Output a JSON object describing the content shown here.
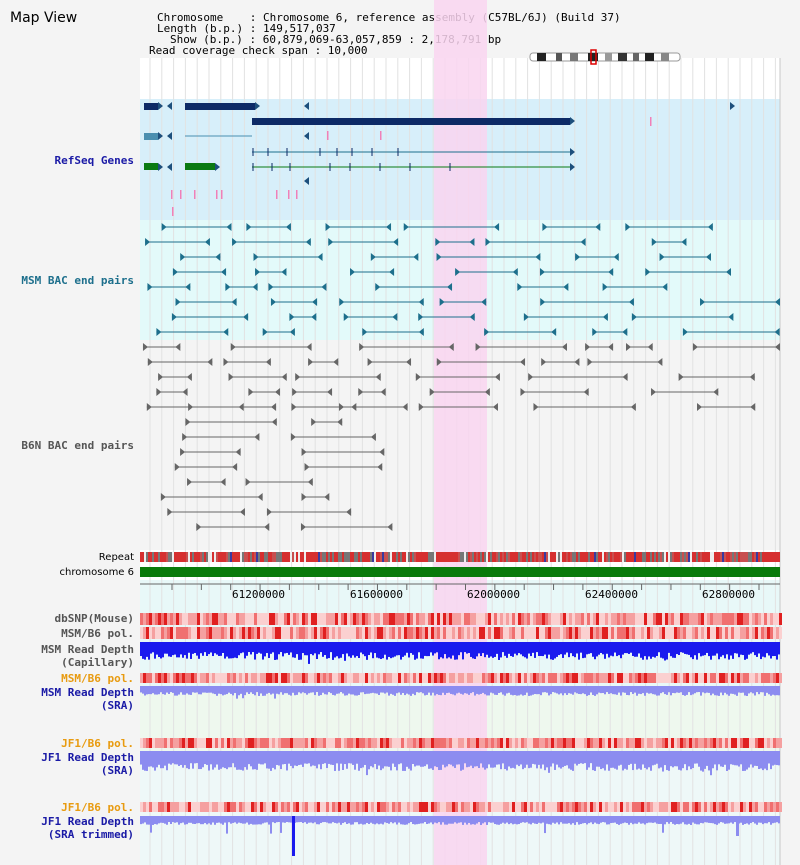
{
  "title": "Map View",
  "info": {
    "chromosome": "Chromosome    : Chromosome 6, reference assembly (C57BL/6J) (Build 37)",
    "length": "Length (b.p.) : 149,517,037",
    "show": "Show (b.p.) : 60,879,069-63,057,859 : 2,178,791 bp",
    "coverage": "Read coverage check span : 10,000"
  },
  "tracks": {
    "refseq": "RefSeq Genes",
    "msm_bac": "MSM BAC end pairs",
    "b6n_bac": "B6N BAC end pairs",
    "repeat": "Repeat",
    "chromosome": "chromosome 6",
    "dbsnp": "dbSNP(Mouse)",
    "msm_b6_pol_1": "MSM/B6 pol.",
    "msm_depth_cap_1": "MSM Read Depth",
    "msm_depth_cap_2": "(Capillary)",
    "msm_b6_pol_2": "MSM/B6 pol.",
    "msm_depth_sra_1": "MSM Read Depth",
    "msm_depth_sra_2": "(SRA)",
    "jf1_b6_pol_1": "JF1/B6 pol.",
    "jf1_depth_sra_1": "JF1 Read Depth",
    "jf1_depth_sra_2": "(SRA)",
    "jf1_b6_pol_2": "JF1/B6 pol.",
    "jf1_depth_trim_1": "JF1 Read Depth",
    "jf1_depth_trim_2": "(SRA trimmed)"
  },
  "axis": {
    "ticks": [
      "61200000",
      "61600000",
      "62000000",
      "62400000",
      "62800000"
    ]
  },
  "colors": {
    "highlight": "#f9d5f0",
    "refseq_bg": "#d7effa",
    "msm_bg": "#e3fafa",
    "gene_dark": "#0d2a66",
    "gene_teal": "#4a8fb0",
    "gene_green": "#0a7a12",
    "chrom_green": "#0a7a0a",
    "depth_blue": "#1a1aee",
    "depth_light": "#8c8cf0",
    "snp_red": "#e84040"
  }
}
